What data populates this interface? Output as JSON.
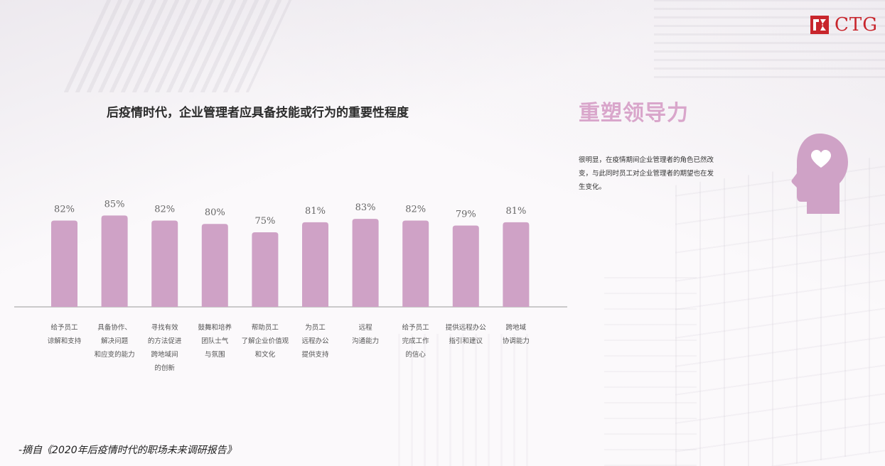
{
  "brand": {
    "logo_text": "CTG",
    "logo_color": "#c8252c"
  },
  "chart_data": {
    "type": "bar",
    "title": "后疫情时代，企业管理者应具备技能或行为的重要性程度",
    "xlabel": "",
    "ylabel": "",
    "ylim": [
      0,
      100
    ],
    "grid": false,
    "bar_color": "#cfa2c6",
    "categories": [
      "给予员工\n谅解和支持",
      "具备协作、\n解决问题\n和应变的能力",
      "寻找有效\n的方法促进\n跨地域间\n的创新",
      "鼓舞和培养\n团队士气\n与氛围",
      "帮助员工\n了解企业价值观\n和文化",
      "为员工\n远程办公\n提供支持",
      "远程\n沟通能力",
      "给予员工\n完成工作\n的信心",
      "提供远程办公\n指引和建议",
      "跨地域\n协调能力"
    ],
    "values": [
      82,
      85,
      82,
      80,
      75,
      81,
      83,
      82,
      79,
      81
    ],
    "data_labels": [
      "82%",
      "85%",
      "82%",
      "80%",
      "75%",
      "81%",
      "83%",
      "82%",
      "79%",
      "81%"
    ]
  },
  "side_panel": {
    "title": "重塑领导力",
    "description": "很明显，在疫情期间企业管理者的角色已然改变，与此同时员工对企业管理者的期望也在发生变化。",
    "icon": "head-heart-icon",
    "accent_color": "#d9a6cb"
  },
  "source_note": "-摘自《2020年后疫情时代的职场未来调研报告》"
}
